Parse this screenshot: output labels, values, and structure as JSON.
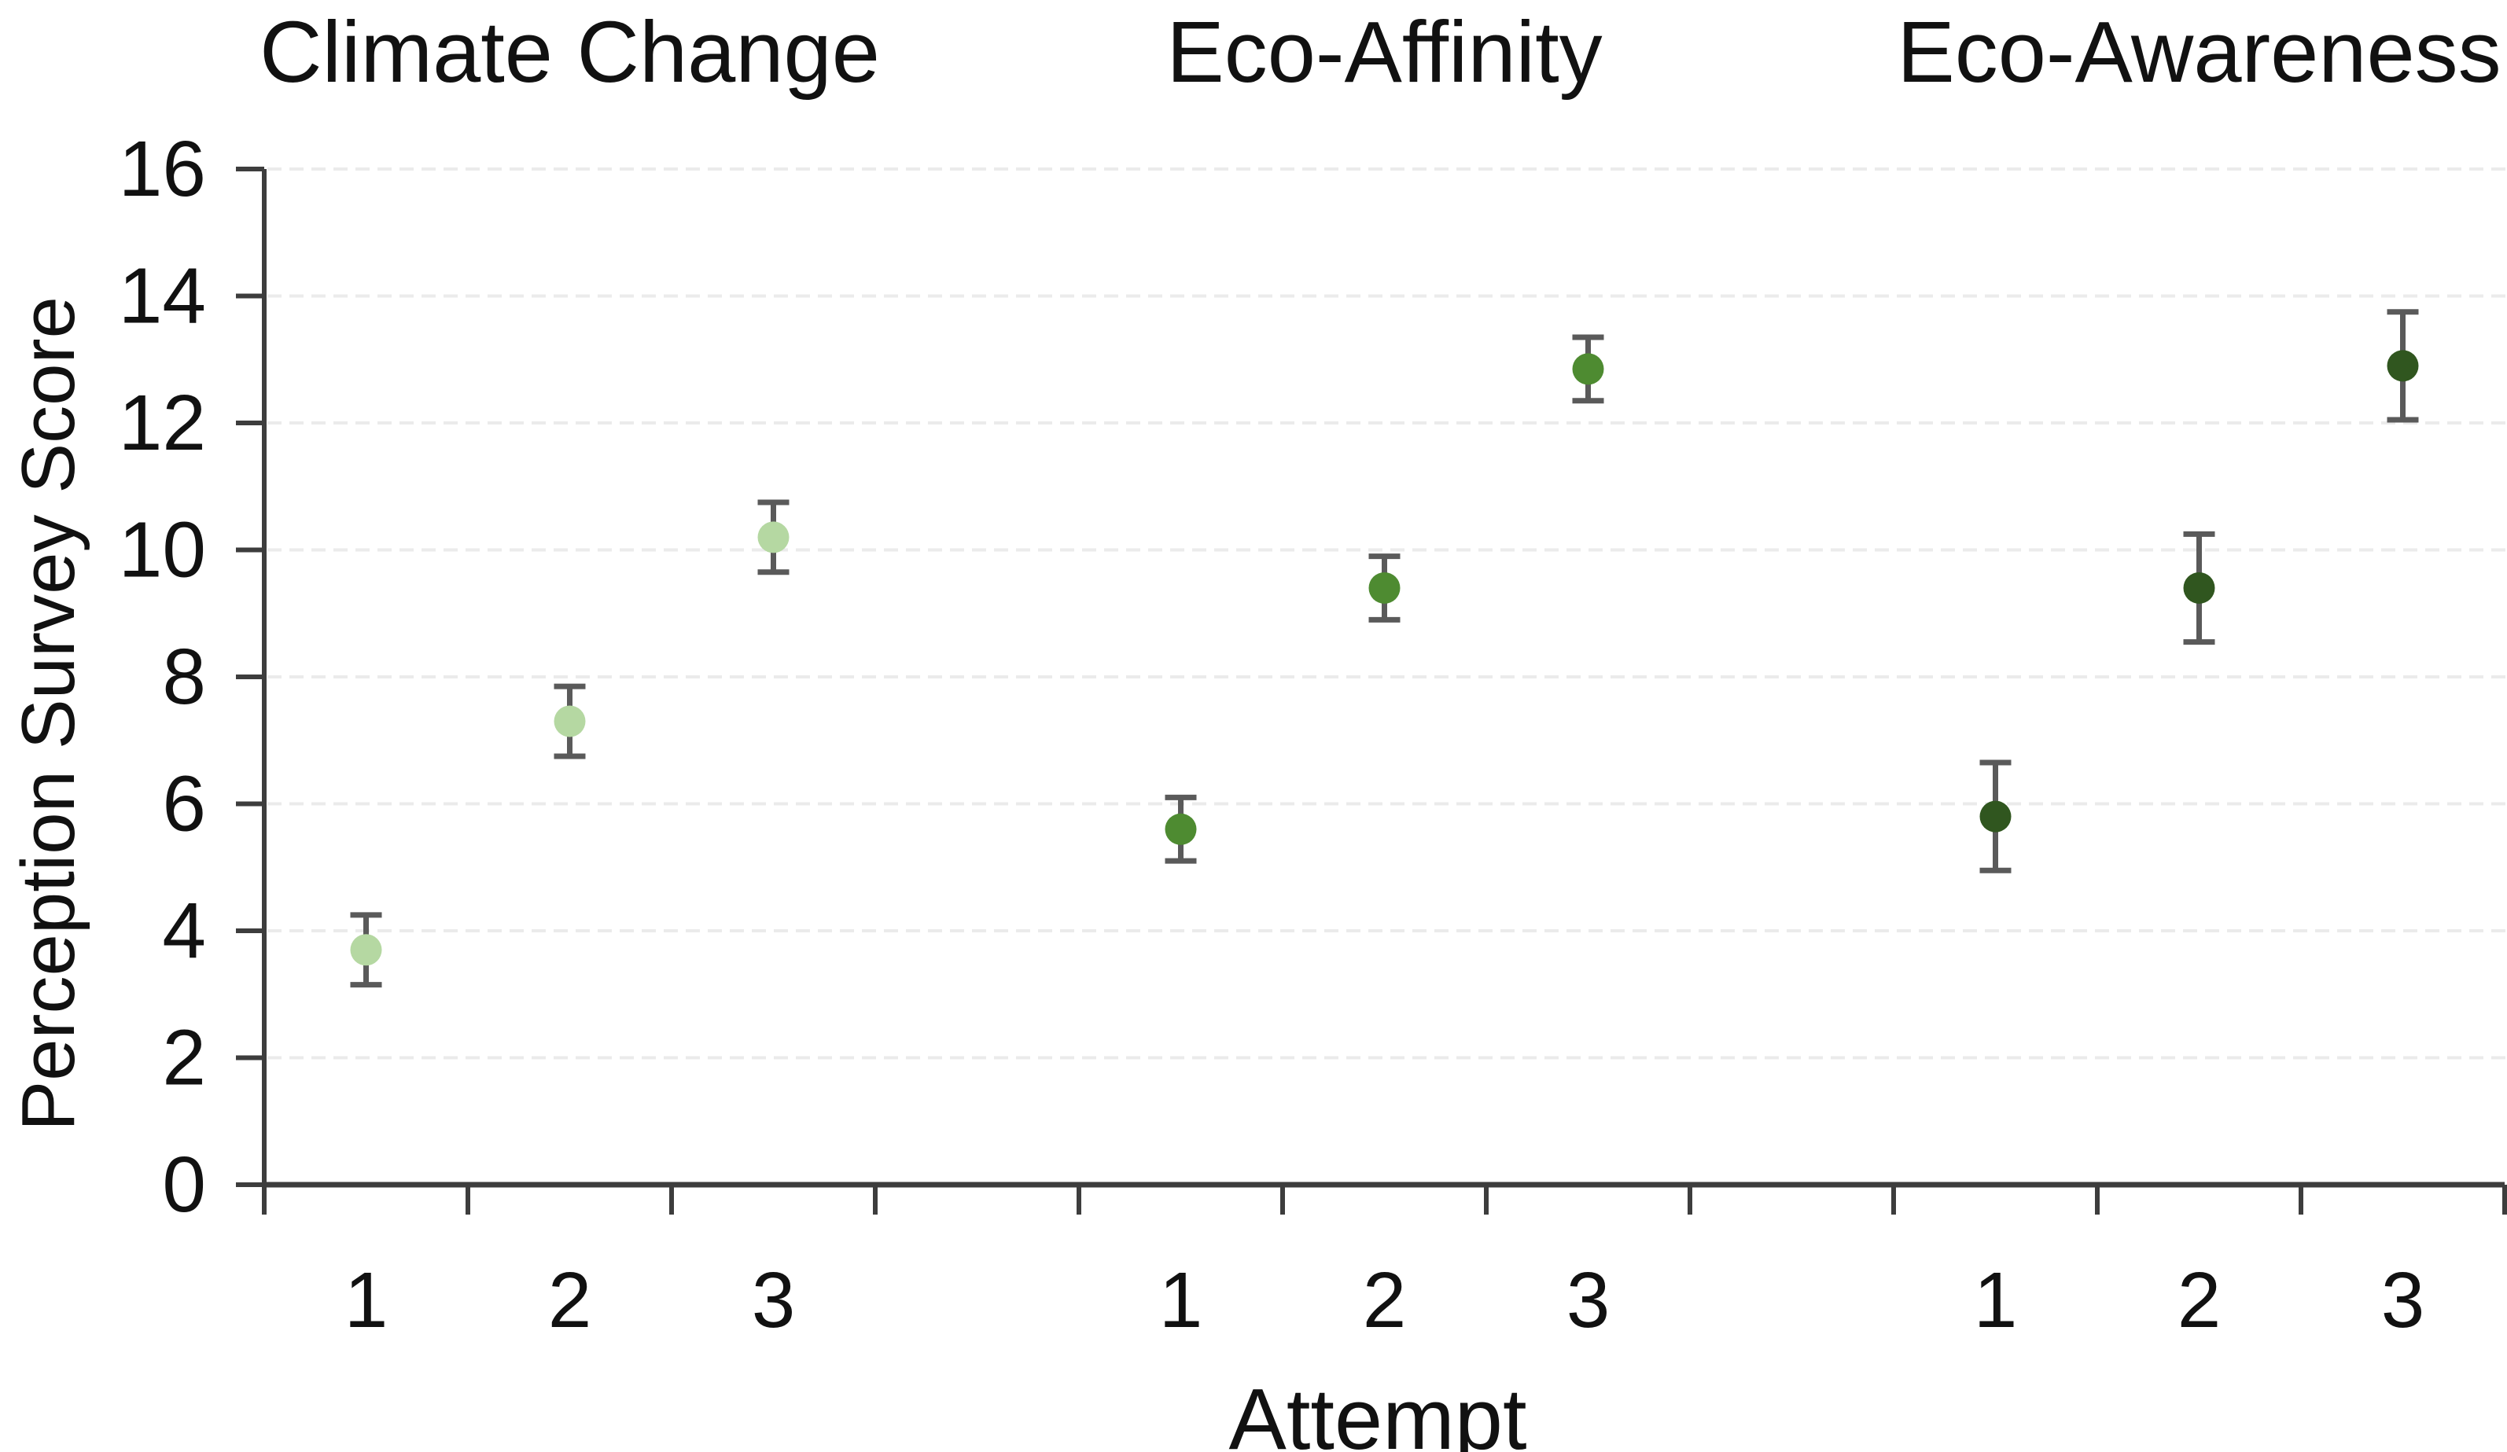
{
  "chart_data": {
    "type": "scatter",
    "title": "",
    "xlabel": "Attempt",
    "ylabel": "Perception Survey Score",
    "ylim": [
      0,
      16
    ],
    "ytick_step": 2,
    "ytick_labels": [
      "0",
      "2",
      "4",
      "6",
      "8",
      "10",
      "12",
      "14",
      "16"
    ],
    "x_categories": [
      "1",
      "2",
      "3"
    ],
    "grid": "horizontal dashed light-gray",
    "legend_position": "none (group names shown as titles above plot)",
    "groups": [
      {
        "name": "Climate Change",
        "color": "#b5d8a2",
        "values": [
          3.7,
          7.3,
          10.2
        ],
        "errors": [
          0.55,
          0.55,
          0.55
        ]
      },
      {
        "name": "Eco-Affinity",
        "color": "#4e8b31",
        "values": [
          5.6,
          9.4,
          12.85
        ],
        "errors": [
          0.5,
          0.5,
          0.5
        ]
      },
      {
        "name": "Eco-Awareness",
        "color": "#30561f",
        "values": [
          5.8,
          9.4,
          12.9
        ],
        "errors": [
          0.85,
          0.85,
          0.85
        ]
      }
    ],
    "style": {
      "axis_color": "#3d3d3d",
      "errorbar_color": "#5a5a5a",
      "gridline_color": "#ebebeb",
      "text_color": "#111111",
      "background": "#ffffff"
    }
  }
}
